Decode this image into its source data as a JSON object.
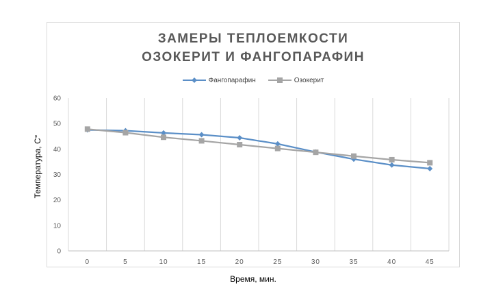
{
  "chart_data": {
    "type": "line",
    "title_lines": [
      "ЗАМЕРЫ ТЕПЛОЕМКОСТИ",
      "ОЗОКЕРИТ И ФАНГОПАРАФИН"
    ],
    "xlabel": "Время, мин.",
    "ylabel": "Температура, С°",
    "categories": [
      "0",
      "5",
      "10",
      "15",
      "20",
      "25",
      "30",
      "35",
      "40",
      "45"
    ],
    "ylim": [
      0,
      60
    ],
    "yticks": [
      0,
      10,
      20,
      30,
      40,
      50,
      60
    ],
    "grid": "vertical",
    "legend_position": "top",
    "series": [
      {
        "name": "Фангопарафин",
        "color": "#5b8fc7",
        "marker": "diamond",
        "values": [
          47.5,
          47.2,
          46.3,
          45.6,
          44.4,
          42.0,
          38.8,
          36.0,
          33.7,
          32.3
        ]
      },
      {
        "name": "Озокерит",
        "color": "#a5a5a5",
        "marker": "square",
        "values": [
          47.8,
          46.4,
          44.6,
          43.2,
          41.7,
          40.2,
          38.7,
          37.2,
          35.8,
          34.6
        ]
      }
    ]
  }
}
